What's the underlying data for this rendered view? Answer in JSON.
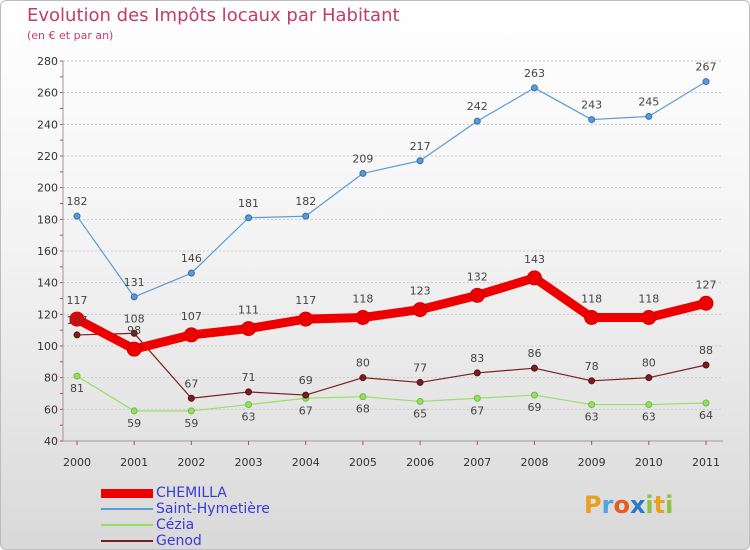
{
  "title": "Evolution des Impôts locaux par Habitant",
  "subtitle": "(en € et par an)",
  "logo": {
    "letters": [
      "P",
      "r",
      "o",
      "x",
      "i",
      "t",
      "i"
    ],
    "colors": [
      "#e8a020",
      "#4fa3e0",
      "#e85c20",
      "#2c78c8",
      "#8ac43f",
      "#e8a020",
      "#8ac43f"
    ]
  },
  "chart_data": {
    "type": "line",
    "categories": [
      "2000",
      "2001",
      "2002",
      "2003",
      "2004",
      "2005",
      "2006",
      "2007",
      "2008",
      "2009",
      "2010",
      "2011"
    ],
    "ylim": [
      40,
      280
    ],
    "yticks": [
      40,
      60,
      80,
      100,
      120,
      140,
      160,
      180,
      200,
      220,
      240,
      260,
      280
    ],
    "grid": "horizontal",
    "legend_position": "bottom-left",
    "series": [
      {
        "name": "Saint-Hymetière",
        "color": "#5b9bd5",
        "values": [
          182,
          131,
          146,
          181,
          182,
          209,
          217,
          242,
          263,
          243,
          245,
          267
        ]
      },
      {
        "name": "CHEMILLA",
        "color": "#ee0000",
        "values": [
          117,
          98,
          107,
          111,
          117,
          118,
          123,
          132,
          143,
          118,
          118,
          127
        ]
      },
      {
        "name": "Cézia",
        "color": "#99dd66",
        "values": [
          81,
          59,
          59,
          63,
          67,
          68,
          65,
          67,
          69,
          63,
          63,
          64
        ]
      },
      {
        "name": "Genod",
        "color": "#7a1f1f",
        "values": [
          107,
          108,
          67,
          71,
          69,
          80,
          77,
          83,
          86,
          78,
          80,
          88
        ]
      }
    ],
    "legend_order": [
      "CHEMILLA",
      "Saint-Hymetière",
      "Cézia",
      "Genod"
    ]
  }
}
